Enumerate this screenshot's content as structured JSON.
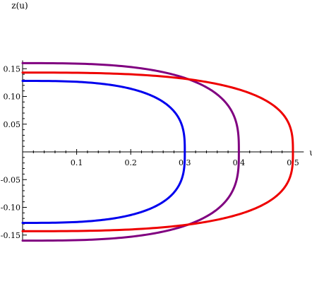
{
  "chart_data": {
    "type": "line",
    "xlabel": "u",
    "ylabel": "z(u)",
    "xlim": [
      0,
      0.52
    ],
    "ylim": [
      -0.16,
      0.165
    ],
    "x_ticks": [
      {
        "value": 0.1,
        "label": "0.1"
      },
      {
        "value": 0.2,
        "label": "0.2"
      },
      {
        "value": 0.3,
        "label": "0.3"
      },
      {
        "value": 0.4,
        "label": "0.4"
      },
      {
        "value": 0.5,
        "label": "0.5"
      }
    ],
    "y_ticks": [
      {
        "value": 0.15,
        "label": "0.15"
      },
      {
        "value": 0.1,
        "label": "0.10"
      },
      {
        "value": 0.05,
        "label": "0.05"
      },
      {
        "value": -0.05,
        "label": "-0.05"
      },
      {
        "value": -0.1,
        "label": "-0.10"
      },
      {
        "value": -0.15,
        "label": "-0.15"
      }
    ],
    "grid": false,
    "series": [
      {
        "color": "#0000ee",
        "turning_point_u": 0.3,
        "max_z": 0.128
      },
      {
        "color": "#800080",
        "turning_point_u": 0.4,
        "max_z": 0.16
      },
      {
        "color": "#ee0000",
        "turning_point_u": 0.5,
        "max_z": 0.143
      }
    ]
  }
}
